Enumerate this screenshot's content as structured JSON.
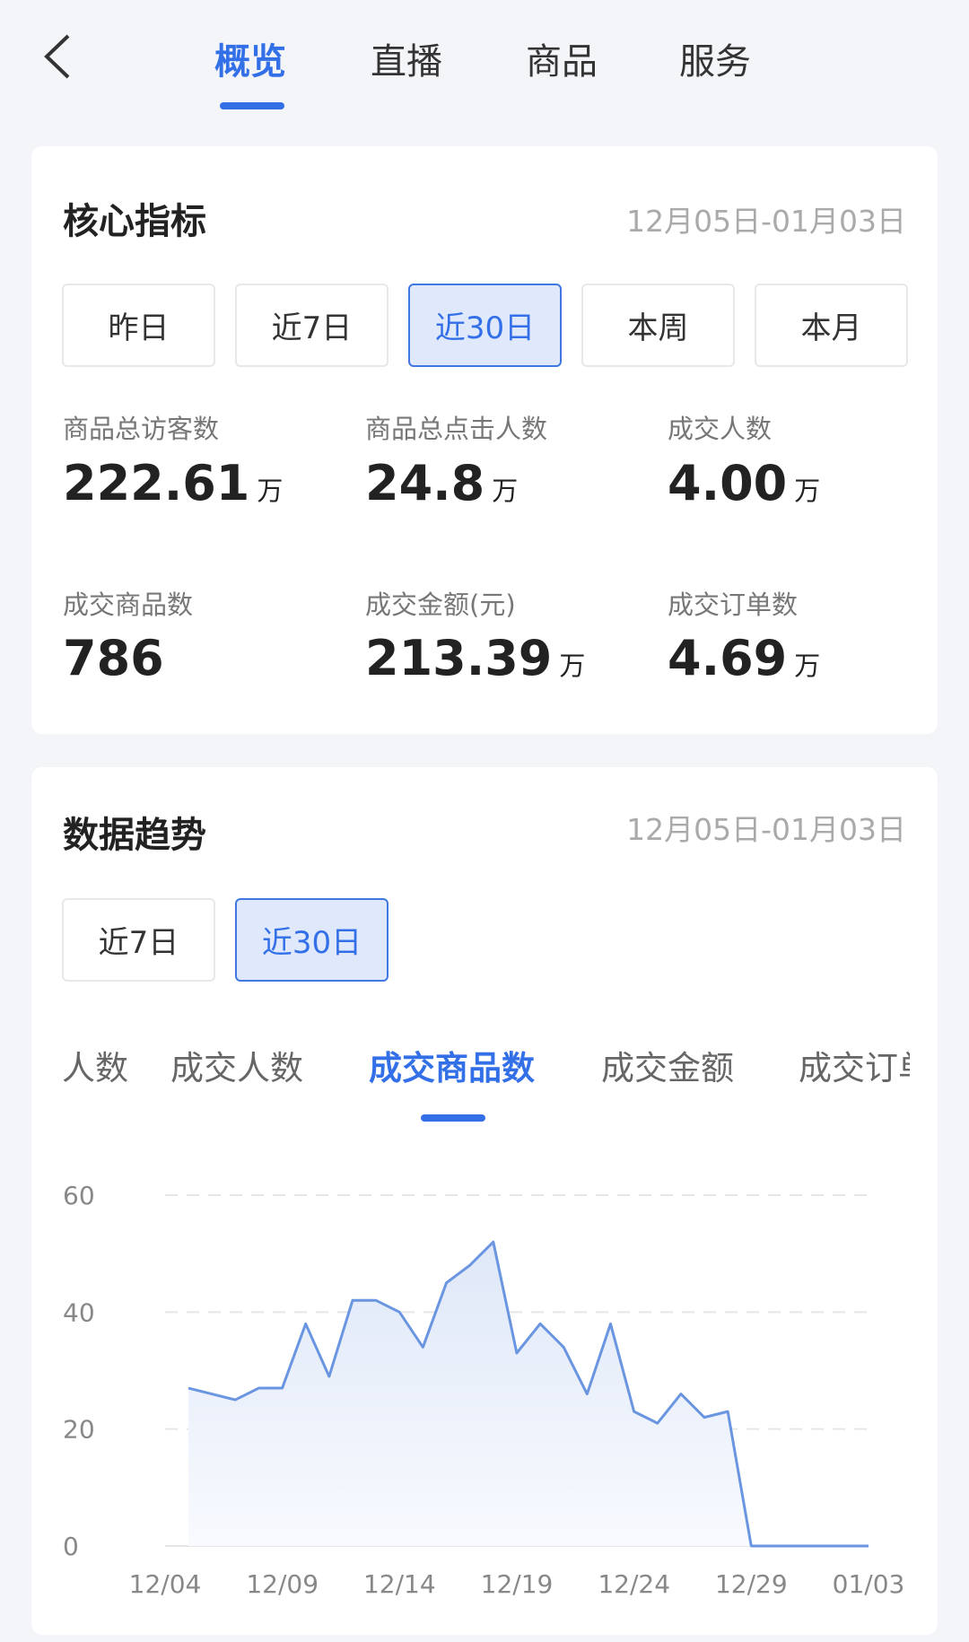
{
  "header": {
    "tabs": [
      {
        "label": "概览",
        "active": true
      },
      {
        "label": "直播"
      },
      {
        "label": "商品"
      },
      {
        "label": "服务"
      }
    ]
  },
  "core": {
    "title": "核心指标",
    "date_range": "12月05日-01月03日",
    "periods": [
      {
        "label": "昨日"
      },
      {
        "label": "近7日"
      },
      {
        "label": "近30日",
        "active": true
      },
      {
        "label": "本周"
      },
      {
        "label": "本月"
      }
    ],
    "metrics": [
      {
        "label": "商品总访客数",
        "value": "222.61",
        "unit": "万"
      },
      {
        "label": "商品总点击人数",
        "value": "24.8",
        "unit": "万"
      },
      {
        "label": "成交人数",
        "value": "4.00",
        "unit": "万"
      },
      {
        "label": "成交商品数",
        "value": "786",
        "unit": ""
      },
      {
        "label": "成交金额(元)",
        "value": "213.39",
        "unit": "万"
      },
      {
        "label": "成交订单数",
        "value": "4.69",
        "unit": "万"
      }
    ]
  },
  "trend": {
    "title": "数据趋势",
    "date_range": "12月05日-01月03日",
    "periods": [
      {
        "label": "近7日"
      },
      {
        "label": "近30日",
        "active": true
      }
    ],
    "metric_tabs": [
      {
        "label": "击人数"
      },
      {
        "label": "成交人数"
      },
      {
        "label": "成交商品数",
        "active": true
      },
      {
        "label": "成交金额"
      },
      {
        "label": "成交订单数"
      }
    ]
  },
  "colors": {
    "accent": "#3370e8",
    "line": "#6a95e0"
  },
  "chart_data": {
    "type": "area",
    "ylim": [
      0,
      60
    ],
    "yticks": [
      "0",
      "20",
      "40",
      "60"
    ],
    "xticks": [
      "12/04",
      "12/09",
      "12/14",
      "12/19",
      "12/24",
      "12/29",
      "01/03"
    ],
    "grid": true,
    "values": [
      27,
      26,
      25,
      27,
      27,
      38,
      29,
      42,
      42,
      40,
      34,
      45,
      48,
      52,
      33,
      38,
      34,
      26,
      38,
      23,
      21,
      26,
      22,
      23,
      0,
      0,
      0,
      0,
      0,
      0
    ]
  }
}
